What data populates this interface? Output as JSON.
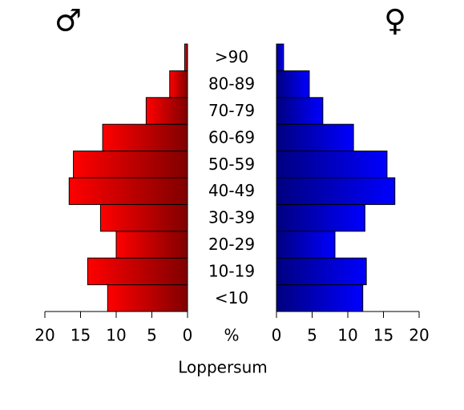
{
  "chart_data": {
    "type": "pyramid",
    "title": "Loppersum",
    "x_label": "%",
    "categories": [
      "<10",
      "10-19",
      "20-29",
      "30-39",
      "40-49",
      "50-59",
      "60-69",
      "70-79",
      "80-89",
      ">90"
    ],
    "series": [
      {
        "name": "♂",
        "color": "#ff0000",
        "values": [
          11.2,
          14.0,
          10.0,
          12.2,
          16.6,
          16.0,
          11.9,
          5.8,
          2.5,
          0.4
        ]
      },
      {
        "name": "♀",
        "color": "#0000ff",
        "values": [
          12.1,
          12.6,
          8.2,
          12.4,
          16.6,
          15.5,
          10.8,
          6.5,
          4.6,
          1.0
        ]
      }
    ],
    "xlim": [
      0,
      20
    ],
    "xticks": [
      0,
      5,
      10,
      15,
      20
    ]
  }
}
